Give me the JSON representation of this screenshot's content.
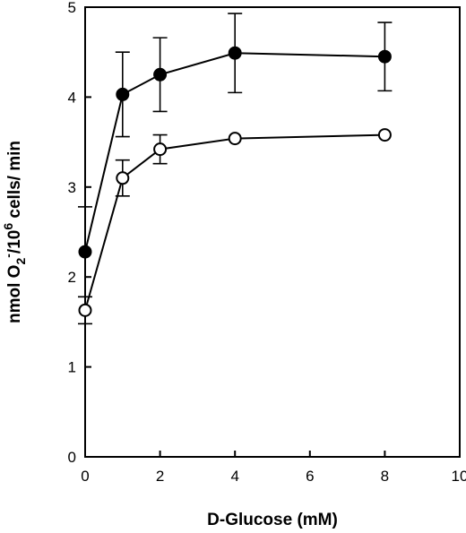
{
  "chart_data": {
    "type": "line",
    "title": "",
    "xlabel": "D-Glucose (mM)",
    "ylabel": {
      "prefix": "nmol O",
      "sub": "2",
      "sup": "-",
      "mid": "/10",
      "sup2": "6",
      "suffix": " cells/ min"
    },
    "xlim": [
      0,
      10
    ],
    "ylim": [
      0,
      5
    ],
    "xticks": [
      0,
      2,
      4,
      6,
      8,
      10
    ],
    "yticks": [
      0,
      1,
      2,
      3,
      4,
      5
    ],
    "grid": false,
    "legend": "none",
    "series": [
      {
        "marker": "filled-circle",
        "x": [
          0,
          1,
          2,
          4,
          8
        ],
        "y": [
          2.28,
          4.03,
          4.25,
          4.49,
          4.45
        ],
        "err": [
          0.5,
          0.47,
          0.41,
          0.44,
          0.38
        ]
      },
      {
        "marker": "open-circle",
        "x": [
          0,
          1,
          2,
          4,
          8
        ],
        "y": [
          1.63,
          3.1,
          3.42,
          3.54,
          3.58
        ],
        "err": [
          0.15,
          0.2,
          0.16,
          0,
          0
        ]
      }
    ]
  }
}
